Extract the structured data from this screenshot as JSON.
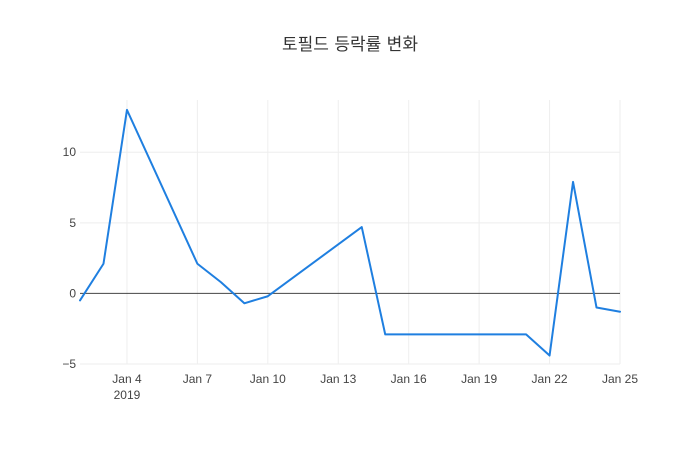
{
  "chart_data": {
    "type": "line",
    "title": "토필드 등락률 변화",
    "xlabel": "",
    "ylabel": "",
    "x_ticks": [
      {
        "date": "2019-01-04",
        "label": "Jan 4",
        "sublabel": "2019"
      },
      {
        "date": "2019-01-07",
        "label": "Jan 7"
      },
      {
        "date": "2019-01-10",
        "label": "Jan 10"
      },
      {
        "date": "2019-01-13",
        "label": "Jan 13"
      },
      {
        "date": "2019-01-16",
        "label": "Jan 16"
      },
      {
        "date": "2019-01-19",
        "label": "Jan 19"
      },
      {
        "date": "2019-01-22",
        "label": "Jan 22"
      },
      {
        "date": "2019-01-25",
        "label": "Jan 25"
      }
    ],
    "y_ticks": [
      {
        "value": -5,
        "label": "−5"
      },
      {
        "value": 0,
        "label": "0"
      },
      {
        "value": 5,
        "label": "5"
      },
      {
        "value": 10,
        "label": "10"
      }
    ],
    "xlim": [
      "2019-01-02",
      "2019-01-25"
    ],
    "ylim": [
      -5,
      13.7
    ],
    "grid": true,
    "zeroline": true,
    "series": [
      {
        "color": "#1f7fe0",
        "points": [
          {
            "x": "2019-01-02",
            "y": -0.5
          },
          {
            "x": "2019-01-03",
            "y": 2.1
          },
          {
            "x": "2019-01-04",
            "y": 13.0
          },
          {
            "x": "2019-01-07",
            "y": 2.1
          },
          {
            "x": "2019-01-08",
            "y": 0.8
          },
          {
            "x": "2019-01-09",
            "y": -0.7
          },
          {
            "x": "2019-01-10",
            "y": -0.2
          },
          {
            "x": "2019-01-14",
            "y": 4.7
          },
          {
            "x": "2019-01-15",
            "y": -2.9
          },
          {
            "x": "2019-01-21",
            "y": -2.9
          },
          {
            "x": "2019-01-22",
            "y": -4.4
          },
          {
            "x": "2019-01-23",
            "y": 7.9
          },
          {
            "x": "2019-01-24",
            "y": -1.0
          },
          {
            "x": "2019-01-25",
            "y": -1.3
          }
        ]
      }
    ]
  }
}
